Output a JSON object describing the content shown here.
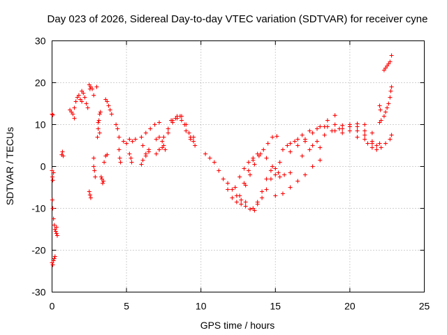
{
  "chart_data": {
    "type": "scatter",
    "title": "Day 023 of 2026, Sidereal Day-to-day VTEC variation (SDTVAR) for receiver cyne",
    "xlabel": "GPS time / hours",
    "ylabel": "SDTVAR / TECUs",
    "xlim": [
      0,
      25
    ],
    "ylim": [
      -30,
      30
    ],
    "x_ticks": [
      0,
      5,
      10,
      15,
      20,
      25
    ],
    "y_ticks": [
      -30,
      -20,
      -10,
      0,
      10,
      20,
      30
    ],
    "x_tick_labels": [
      "0",
      "5",
      "10",
      "15",
      "20",
      "25"
    ],
    "y_tick_labels": [
      "-30",
      "-20",
      "-10",
      "0",
      "10",
      "20",
      "30"
    ],
    "grid": true,
    "marker": "+",
    "series": [
      {
        "name": "SDTVAR",
        "color": "#ff0000",
        "points": [
          [
            0.0,
            12.5
          ],
          [
            0.05,
            12.3
          ],
          [
            0.0,
            -1.0
          ],
          [
            0.02,
            -2.5
          ],
          [
            0.05,
            -3.3
          ],
          [
            0.1,
            -1.5
          ],
          [
            0.02,
            -8.0
          ],
          [
            0.05,
            -10.0
          ],
          [
            0.1,
            -12.5
          ],
          [
            0.15,
            -14.0
          ],
          [
            0.2,
            -15.0
          ],
          [
            0.25,
            -15.5
          ],
          [
            0.3,
            -16.0
          ],
          [
            0.35,
            -16.5
          ],
          [
            0.3,
            -14.5
          ],
          [
            0.0,
            -23.0
          ],
          [
            0.05,
            -23.5
          ],
          [
            0.1,
            -22.5
          ],
          [
            0.15,
            -22.0
          ],
          [
            0.2,
            -21.5
          ],
          [
            0.7,
            3.5
          ],
          [
            0.65,
            2.8
          ],
          [
            0.75,
            2.5
          ],
          [
            1.2,
            13.5
          ],
          [
            1.3,
            13.0
          ],
          [
            1.4,
            12.5
          ],
          [
            1.5,
            14.0
          ],
          [
            1.5,
            11.5
          ],
          [
            1.6,
            15.5
          ],
          [
            1.7,
            16.5
          ],
          [
            1.8,
            17.0
          ],
          [
            1.9,
            16.0
          ],
          [
            2.0,
            15.5
          ],
          [
            2.0,
            18.0
          ],
          [
            2.1,
            17.5
          ],
          [
            2.2,
            16.5
          ],
          [
            2.3,
            15.0
          ],
          [
            2.4,
            14.0
          ],
          [
            2.5,
            19.5
          ],
          [
            2.55,
            18.5
          ],
          [
            2.6,
            19.0
          ],
          [
            2.7,
            18.5
          ],
          [
            2.8,
            17.0
          ],
          [
            3.0,
            19.0
          ],
          [
            2.5,
            -6.0
          ],
          [
            2.55,
            -6.8
          ],
          [
            2.6,
            -7.5
          ],
          [
            2.8,
            2.0
          ],
          [
            2.8,
            0.0
          ],
          [
            2.85,
            -1.0
          ],
          [
            2.9,
            -2.5
          ],
          [
            3.05,
            7.0
          ],
          [
            3.1,
            9.0
          ],
          [
            3.15,
            11.0
          ],
          [
            3.2,
            12.5
          ],
          [
            3.25,
            13.0
          ],
          [
            3.1,
            10.5
          ],
          [
            3.2,
            8.0
          ],
          [
            3.3,
            -2.5
          ],
          [
            3.35,
            -3.0
          ],
          [
            3.4,
            -4.0
          ],
          [
            3.45,
            -3.5
          ],
          [
            3.5,
            1.0
          ],
          [
            3.6,
            2.5
          ],
          [
            3.7,
            2.8
          ],
          [
            3.6,
            16.0
          ],
          [
            3.7,
            15.5
          ],
          [
            3.8,
            14.5
          ],
          [
            3.9,
            13.5
          ],
          [
            4.0,
            12.5
          ],
          [
            4.3,
            10.0
          ],
          [
            4.4,
            9.0
          ],
          [
            4.5,
            7.0
          ],
          [
            4.5,
            4.0
          ],
          [
            4.55,
            2.0
          ],
          [
            4.6,
            1.0
          ],
          [
            4.8,
            6.0
          ],
          [
            5.0,
            5.5
          ],
          [
            5.2,
            6.5
          ],
          [
            5.4,
            6.0
          ],
          [
            5.6,
            6.5
          ],
          [
            5.2,
            3.0
          ],
          [
            5.3,
            2.0
          ],
          [
            5.35,
            1.0
          ],
          [
            6.0,
            7.0
          ],
          [
            6.3,
            8.0
          ],
          [
            6.6,
            9.0
          ],
          [
            6.9,
            10.0
          ],
          [
            7.2,
            10.5
          ],
          [
            6.1,
            5.0
          ],
          [
            6.3,
            3.0
          ],
          [
            6.5,
            4.0
          ],
          [
            6.0,
            0.5
          ],
          [
            6.1,
            1.5
          ],
          [
            6.3,
            2.5
          ],
          [
            6.5,
            3.5
          ],
          [
            7.0,
            6.5
          ],
          [
            7.2,
            7.0
          ],
          [
            7.4,
            6.0
          ],
          [
            7.2,
            4.0
          ],
          [
            7.5,
            7.0
          ],
          [
            7.8,
            9.0
          ],
          [
            8.1,
            10.5
          ],
          [
            8.4,
            11.5
          ],
          [
            8.7,
            12.0
          ],
          [
            9.0,
            10.0
          ],
          [
            9.3,
            7.0
          ],
          [
            9.5,
            6.0
          ],
          [
            7.5,
            5.0
          ],
          [
            7.8,
            8.0
          ],
          [
            8.1,
            11.0
          ],
          [
            8.4,
            12.0
          ],
          [
            8.7,
            11.0
          ],
          [
            9.0,
            8.5
          ],
          [
            9.3,
            6.5
          ],
          [
            9.6,
            5.0
          ],
          [
            8.0,
            11.0
          ],
          [
            8.3,
            11.5
          ],
          [
            8.6,
            12.0
          ],
          [
            8.9,
            10.0
          ],
          [
            9.2,
            8.0
          ],
          [
            9.5,
            7.0
          ],
          [
            7.0,
            3.0
          ],
          [
            7.2,
            4.0
          ],
          [
            7.4,
            4.5
          ],
          [
            7.6,
            4.0
          ],
          [
            10.3,
            3.0
          ],
          [
            10.6,
            2.0
          ],
          [
            10.9,
            1.0
          ],
          [
            11.2,
            -1.0
          ],
          [
            11.5,
            -3.0
          ],
          [
            11.8,
            -5.5
          ],
          [
            12.1,
            -7.5
          ],
          [
            12.4,
            -8.5
          ],
          [
            12.7,
            -9.0
          ],
          [
            13.0,
            -9.5
          ],
          [
            13.3,
            -10.2
          ],
          [
            13.6,
            -10.5
          ],
          [
            11.8,
            -4.0
          ],
          [
            12.1,
            -5.5
          ],
          [
            12.4,
            -7.0
          ],
          [
            12.7,
            -8.0
          ],
          [
            13.0,
            -8.5
          ],
          [
            12.3,
            -5.0
          ],
          [
            12.6,
            -2.5
          ],
          [
            12.9,
            -0.5
          ],
          [
            13.2,
            1.0
          ],
          [
            13.5,
            2.0
          ],
          [
            12.6,
            -7.0
          ],
          [
            12.9,
            -4.0
          ],
          [
            13.2,
            -1.0
          ],
          [
            13.5,
            1.5
          ],
          [
            13.8,
            3.0
          ],
          [
            13.0,
            -4.5
          ],
          [
            13.3,
            -2.0
          ],
          [
            13.6,
            0.5
          ],
          [
            13.9,
            2.5
          ],
          [
            14.2,
            4.0
          ],
          [
            14.5,
            5.5
          ],
          [
            14.8,
            7.0
          ],
          [
            15.1,
            7.2
          ],
          [
            13.5,
            -10.0
          ],
          [
            13.8,
            -9.0
          ],
          [
            14.1,
            -7.5
          ],
          [
            14.4,
            -5.5
          ],
          [
            14.7,
            -3.0
          ],
          [
            15.0,
            -0.5
          ],
          [
            15.3,
            1.0
          ],
          [
            13.8,
            -8.5
          ],
          [
            14.1,
            -6.0
          ],
          [
            14.4,
            -3.0
          ],
          [
            14.7,
            -1.0
          ],
          [
            15.0,
            -2.0
          ],
          [
            15.3,
            -2.5
          ],
          [
            14.0,
            3.0
          ],
          [
            14.4,
            2.0
          ],
          [
            14.8,
            0.0
          ],
          [
            15.2,
            -1.5
          ],
          [
            15.6,
            -2.0
          ],
          [
            16.0,
            -1.5
          ],
          [
            15.0,
            -7.0
          ],
          [
            15.5,
            -6.5
          ],
          [
            16.0,
            -5.0
          ],
          [
            16.5,
            -3.5
          ],
          [
            17.0,
            -2.0
          ],
          [
            17.5,
            0.0
          ],
          [
            18.0,
            1.5
          ],
          [
            15.5,
            4.0
          ],
          [
            16.0,
            5.5
          ],
          [
            16.5,
            6.5
          ],
          [
            17.0,
            6.0
          ],
          [
            17.5,
            5.0
          ],
          [
            18.0,
            4.5
          ],
          [
            16.0,
            3.5
          ],
          [
            16.5,
            5.0
          ],
          [
            17.0,
            6.5
          ],
          [
            17.5,
            8.0
          ],
          [
            18.0,
            9.5
          ],
          [
            18.5,
            11.0
          ],
          [
            19.0,
            12.2
          ],
          [
            15.8,
            5.0
          ],
          [
            16.3,
            6.0
          ],
          [
            16.8,
            7.5
          ],
          [
            17.3,
            8.5
          ],
          [
            17.8,
            9.0
          ],
          [
            18.3,
            9.5
          ],
          [
            16.8,
            2.5
          ],
          [
            17.3,
            4.0
          ],
          [
            17.8,
            6.0
          ],
          [
            18.3,
            7.5
          ],
          [
            18.8,
            8.5
          ],
          [
            19.3,
            9.0
          ],
          [
            18.5,
            9.5
          ],
          [
            19.0,
            10.0
          ],
          [
            19.5,
            9.8
          ],
          [
            20.0,
            10.0
          ],
          [
            20.5,
            9.5
          ],
          [
            21.0,
            8.5
          ],
          [
            21.5,
            8.0
          ],
          [
            19.0,
            8.5
          ],
          [
            19.5,
            9.0
          ],
          [
            20.0,
            9.5
          ],
          [
            20.5,
            10.2
          ],
          [
            21.0,
            10.0
          ],
          [
            19.5,
            8.0
          ],
          [
            20.0,
            8.5
          ],
          [
            20.5,
            8.5
          ],
          [
            21.0,
            7.5
          ],
          [
            21.5,
            6.0
          ],
          [
            22.0,
            5.5
          ],
          [
            20.5,
            7.0
          ],
          [
            21.0,
            6.5
          ],
          [
            21.5,
            5.5
          ],
          [
            21.8,
            5.0
          ],
          [
            22.1,
            4.5
          ],
          [
            22.4,
            5.5
          ],
          [
            22.7,
            6.5
          ],
          [
            22.8,
            7.5
          ],
          [
            21.2,
            5.5
          ],
          [
            21.5,
            4.5
          ],
          [
            21.8,
            4.0
          ],
          [
            22.0,
            10.5
          ],
          [
            22.1,
            11.0
          ],
          [
            22.0,
            14.5
          ],
          [
            22.05,
            13.5
          ],
          [
            22.3,
            12.0
          ],
          [
            22.4,
            13.0
          ],
          [
            22.5,
            14.0
          ],
          [
            22.6,
            15.0
          ],
          [
            22.7,
            16.5
          ],
          [
            22.75,
            18.0
          ],
          [
            22.8,
            19.0
          ],
          [
            22.3,
            23.0
          ],
          [
            22.4,
            23.5
          ],
          [
            22.5,
            24.0
          ],
          [
            22.6,
            24.5
          ],
          [
            22.7,
            25.0
          ],
          [
            22.8,
            26.5
          ]
        ]
      }
    ]
  }
}
